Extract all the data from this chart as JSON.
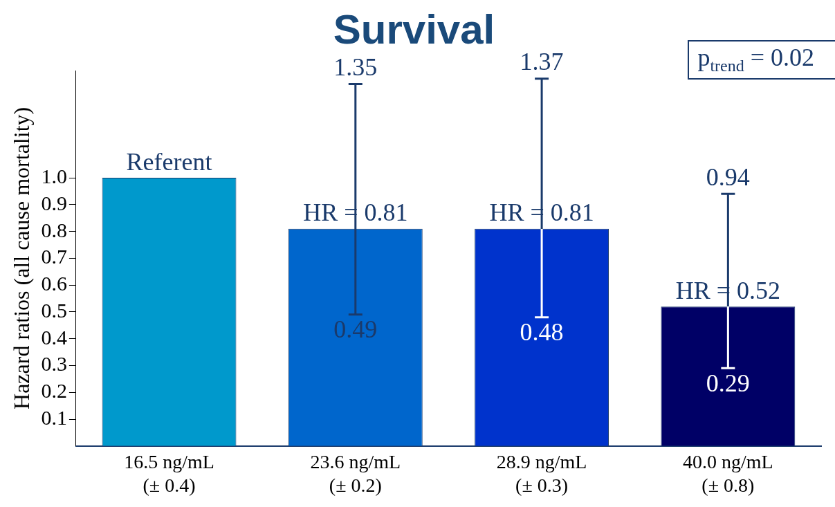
{
  "chart_data": {
    "type": "bar",
    "title": "Survival",
    "ylabel": "Hazard ratios (all cause mortality)",
    "categories": [
      "16.5 ng/mL\n(± 0.4)",
      "23.6 ng/mL\n(± 0.2)",
      "28.9 ng/mL\n(± 0.3)",
      "40.0 ng/mL\n(± 0.8)"
    ],
    "values": [
      1.0,
      0.81,
      0.81,
      0.52
    ],
    "colors": [
      "#0099cc",
      "#0066cc",
      "#0033cc",
      "#000066"
    ],
    "errors": [
      null,
      [
        0.49,
        1.35
      ],
      [
        0.48,
        1.37
      ],
      [
        0.29,
        0.94
      ]
    ],
    "value_labels": [
      "Referent",
      "HR = 0.81",
      "HR = 0.81",
      "HR = 0.52"
    ],
    "ylim": [
      0,
      1.4
    ],
    "yticks": [
      0.1,
      0.2,
      0.3,
      0.4,
      0.5,
      0.6,
      0.7,
      0.8,
      0.9,
      {
        "value": 1.0,
        "label": "1.0"
      }
    ],
    "grid": false,
    "legend": false,
    "annotations": [
      "1.35",
      "0.49",
      "1.37",
      "0.48",
      "0.94",
      "0.29",
      "p$_{trend}$ = 0.02"
    ]
  }
}
